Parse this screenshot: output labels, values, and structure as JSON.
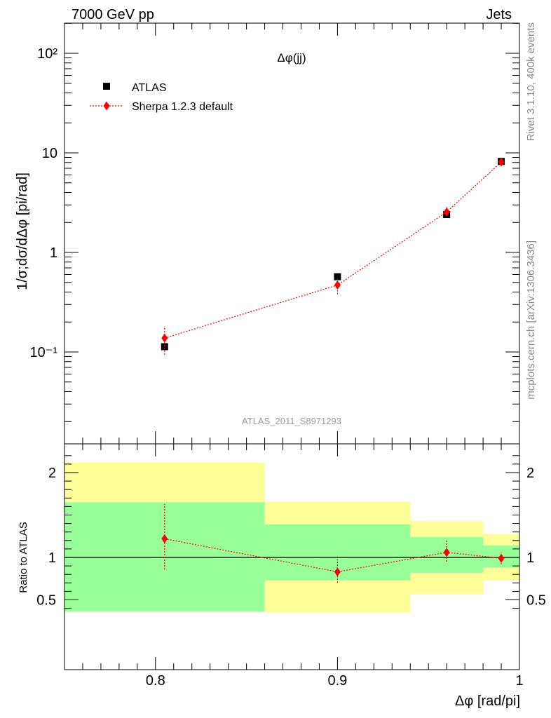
{
  "header": {
    "left": "7000 GeV pp",
    "right": "Jets"
  },
  "side_text": {
    "top": "Rivet 3.1.10,  400k events",
    "bottom": "mcplots.cern.ch [arXiv:1306.3436]"
  },
  "watermark": "ATLAS_2011_S8971293",
  "colors": {
    "data": "#000000",
    "mc": "#ff0000",
    "band_inner": "#99ff99",
    "band_outer": "#ffff99"
  },
  "chart_data": [
    {
      "panel": "main",
      "type": "scatter",
      "title": "Δφ(jj)",
      "ylabel": "1/σ;dσ/dΔφ [pi/rad]",
      "yscale": "log",
      "xlim": [
        0.75,
        1.0
      ],
      "ylim": [
        0.015,
        200
      ],
      "y_tick_labels": [
        "10⁻¹",
        "1",
        "10",
        "10²"
      ],
      "legend_position": "top-left",
      "series": [
        {
          "name": "ATLAS",
          "marker": "square",
          "x": [
            0.805,
            0.9,
            0.96,
            0.99
          ],
          "y": [
            0.113,
            0.57,
            2.4,
            8.2
          ]
        },
        {
          "name": "Sherpa 1.2.3 default",
          "marker": "diamond",
          "line": "dotted",
          "x": [
            0.805,
            0.9,
            0.96,
            0.99
          ],
          "y": [
            0.138,
            0.47,
            2.55,
            8.1
          ],
          "yerr_low": [
            0.094,
            0.38,
            2.3,
            7.6
          ],
          "yerr_high": [
            0.18,
            0.56,
            2.85,
            8.6
          ]
        }
      ]
    },
    {
      "panel": "ratio",
      "type": "line",
      "ylabel": "Ratio to ATLAS",
      "xlabel": "Δφ [rad/pi]",
      "xlim": [
        0.75,
        1.0
      ],
      "ylim": [
        0.35,
        2.3
      ],
      "y_ticks": [
        0.5,
        1,
        2
      ],
      "y_tick_labels": [
        "0.5",
        "1",
        "2"
      ],
      "x_ticks": [
        0.8,
        0.9,
        1.0
      ],
      "x_tick_labels": [
        "0.8",
        "0.9",
        "1"
      ],
      "bands": [
        {
          "x_low": 0.75,
          "x_high": 0.86,
          "inner": [
            0.36,
            1.65
          ],
          "outer": [
            0.36,
            2.12
          ]
        },
        {
          "x_low": 0.86,
          "x_high": 0.94,
          "inner": [
            0.73,
            1.39
          ],
          "outer": [
            0.35,
            1.66
          ]
        },
        {
          "x_low": 0.94,
          "x_high": 0.98,
          "inner": [
            0.82,
            1.24
          ],
          "outer": [
            0.57,
            1.43
          ]
        },
        {
          "x_low": 0.98,
          "x_high": 1.0,
          "inner": [
            0.88,
            1.14
          ],
          "outer": [
            0.73,
            1.28
          ]
        }
      ],
      "series": [
        {
          "name": "Sherpa 1.2.3 default",
          "x": [
            0.805,
            0.9,
            0.96,
            0.99
          ],
          "y": [
            1.22,
            0.83,
            1.06,
            0.99
          ],
          "yerr_low": [
            0.86,
            0.7,
            0.95,
            0.92
          ],
          "yerr_high": [
            1.63,
            0.98,
            1.2,
            1.06
          ]
        }
      ]
    }
  ]
}
